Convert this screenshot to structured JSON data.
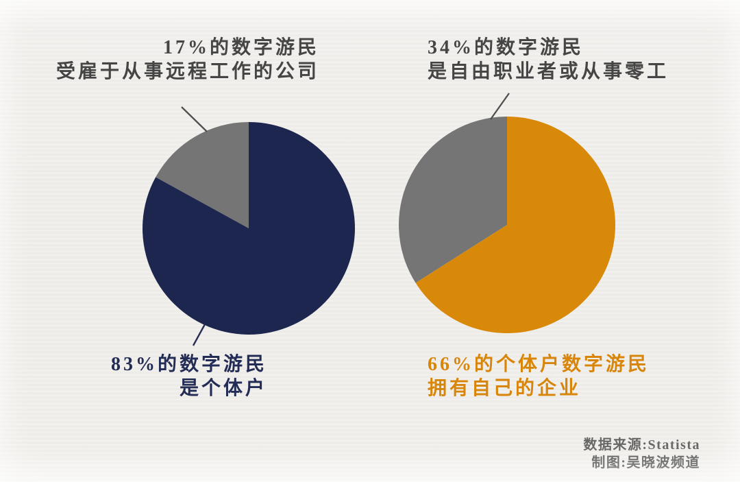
{
  "infographic": {
    "annotations": {
      "left_top": {
        "lines": [
          "17%的数字游民",
          "受雇于从事远程工作的公司"
        ]
      },
      "right_top": {
        "lines": [
          "34%的数字游民",
          "是自由职业者或从事零工"
        ]
      },
      "left_bottom": {
        "lines": [
          "83%的数字游民",
          "是个体户"
        ]
      },
      "right_bottom": {
        "lines": [
          "66%的个体户数字游民",
          "拥有自己的企业"
        ]
      }
    },
    "source": {
      "lines": [
        "数据来源:Statista",
        "制图:吴晓波频道"
      ]
    }
  },
  "colors": {
    "navy": "#1d264e",
    "orange": "#d8890a",
    "gray": "#757575",
    "label_gray": "#454545",
    "label_navy": "#232c55",
    "label_orange": "#d8860b",
    "source_gray": "#666666",
    "leader_gray": "#4f4f4f",
    "leader_navy": "#262e55",
    "background": "#efede9"
  },
  "chart_data": [
    {
      "type": "pie",
      "name": "digital-nomad-employment",
      "slices": [
        {
          "label": "17%的数字游民受雇于从事远程工作的公司",
          "value": 17,
          "color": "#757575"
        },
        {
          "label": "83%的数字游民是个体户",
          "value": 83,
          "color": "#1d264e"
        }
      ],
      "start_deg": -61.2,
      "legend": "none",
      "grid": false
    },
    {
      "type": "pie",
      "name": "self-employed-nomad-split",
      "slices": [
        {
          "label": "34%的数字游民是自由职业者或从事零工",
          "value": 34,
          "color": "#757575"
        },
        {
          "label": "66%的个体户数字游民拥有自己的企业",
          "value": 66,
          "color": "#d8890a"
        }
      ],
      "start_deg": -122.4,
      "legend": "none",
      "grid": false
    }
  ]
}
